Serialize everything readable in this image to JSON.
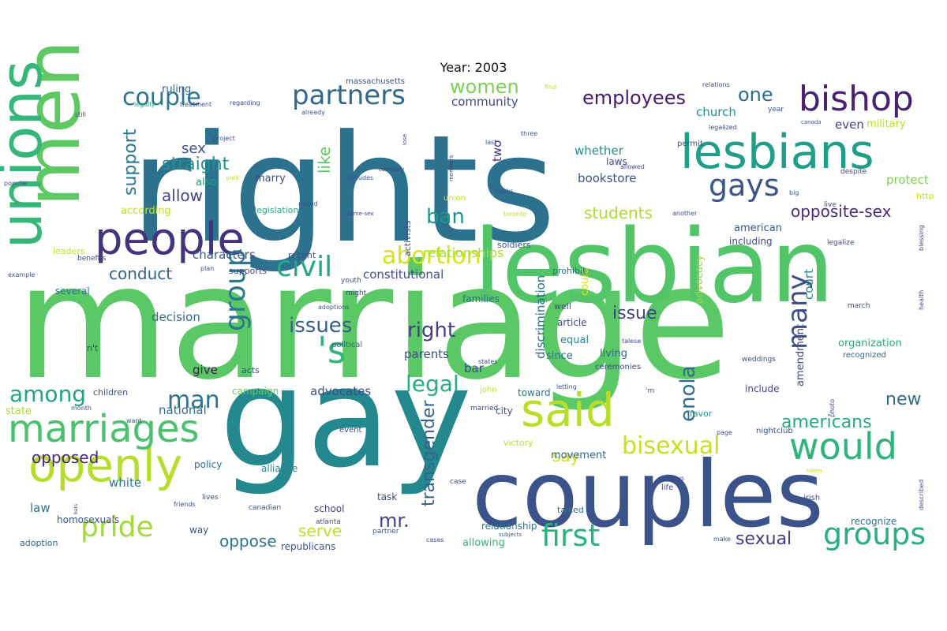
{
  "title": "Year: 2003",
  "words": [
    {
      "text": "marriage",
      "color": "#5ac864"
    },
    {
      "text": "rights",
      "color": "#2c718e"
    },
    {
      "text": "gay",
      "color": "#23898e"
    },
    {
      "text": "lesbian",
      "color": "#52c569"
    },
    {
      "text": "couples",
      "color": "#3b528b"
    },
    {
      "text": "men",
      "color": "#5ec962"
    },
    {
      "text": "unions",
      "color": "#35b779"
    },
    {
      "text": "people",
      "color": "#46337e"
    },
    {
      "text": "lesbians",
      "color": "#1f9e89"
    },
    {
      "text": "bishop",
      "color": "#482173"
    },
    {
      "text": "openly",
      "color": "#b5de2b"
    },
    {
      "text": "marriages",
      "color": "#4ac16d"
    },
    {
      "text": "said",
      "color": "#b8de29"
    },
    {
      "text": "would",
      "color": "#2fb47c"
    },
    {
      "text": "partners",
      "color": "#31688e"
    },
    {
      "text": "gays",
      "color": "#39558c"
    },
    {
      "text": "couple",
      "color": "#2a788e"
    },
    {
      "text": "civil",
      "color": "#22a884"
    },
    {
      "text": "abortion",
      "color": "#d8e219"
    },
    {
      "text": "pride",
      "color": "#a2da37"
    },
    {
      "text": "first",
      "color": "#2db27d"
    },
    {
      "text": "groups",
      "color": "#29af7f"
    },
    {
      "text": "group",
      "color": "#29798e"
    },
    {
      "text": "bisexual",
      "color": "#c8e020"
    },
    {
      "text": "'s",
      "color": "#31b57b"
    },
    {
      "text": "many",
      "color": "#3e4a89"
    },
    {
      "text": "right",
      "color": "#433e85"
    },
    {
      "text": "issues",
      "color": "#355f8d"
    },
    {
      "text": "legal",
      "color": "#26ad81"
    },
    {
      "text": "among",
      "color": "#20a486"
    },
    {
      "text": "man",
      "color": "#2c728e"
    },
    {
      "text": "women",
      "color": "#7ad151"
    },
    {
      "text": "employees",
      "color": "#481a6c"
    },
    {
      "text": "ban",
      "color": "#1f968b"
    },
    {
      "text": "one",
      "color": "#2e6d8e"
    },
    {
      "text": "enola",
      "color": "#2f6c8e"
    },
    {
      "text": "americans",
      "color": "#25ab82"
    },
    {
      "text": "transgender",
      "color": "#33638d"
    },
    {
      "text": "mr.",
      "color": "#3f4788"
    },
    {
      "text": "sexual",
      "color": "#433e85"
    },
    {
      "text": "support",
      "color": "#2a788e"
    },
    {
      "text": "straight",
      "color": "#21918c"
    },
    {
      "text": "sex",
      "color": "#3b528b"
    },
    {
      "text": "allow",
      "color": "#404688"
    },
    {
      "text": "conduct",
      "color": "#34618d"
    },
    {
      "text": "opposed",
      "color": "#482878"
    },
    {
      "text": "oppose",
      "color": "#2a768e"
    },
    {
      "text": "serve",
      "color": "#c0df25"
    },
    {
      "text": "students",
      "color": "#addc30"
    },
    {
      "text": "relationships",
      "color": "#a8db34"
    },
    {
      "text": "opposite-sex",
      "color": "#472d7b"
    },
    {
      "text": "new",
      "color": "#2e6f8e"
    },
    {
      "text": "say",
      "color": "#d0e11c"
    },
    {
      "text": "issue",
      "color": "#414487"
    },
    {
      "text": "like",
      "color": "#5ec962"
    },
    {
      "text": "even",
      "color": "#404588"
    },
    {
      "text": "church",
      "color": "#1f948c"
    },
    {
      "text": "court",
      "color": "#24868e"
    },
    {
      "text": "community",
      "color": "#3e4989"
    },
    {
      "text": "whether",
      "color": "#21918c"
    },
    {
      "text": "bookstore",
      "color": "#3a538b"
    },
    {
      "text": "constitutional",
      "color": "#3d4e8a"
    },
    {
      "text": "characters",
      "color": "#37598c"
    },
    {
      "text": "advocates",
      "color": "#3d4d8a"
    },
    {
      "text": "ruling",
      "color": "#355f8d"
    },
    {
      "text": "two",
      "color": "#472f7d"
    },
    {
      "text": "massachusetts",
      "color": "#3b528b"
    },
    {
      "text": "military",
      "color": "#bddf26"
    },
    {
      "text": "protect",
      "color": "#7fd34e"
    },
    {
      "text": "http",
      "color": "#cae11f"
    },
    {
      "text": "including",
      "color": "#3e4a89"
    },
    {
      "text": "american",
      "color": "#3b528b"
    },
    {
      "text": "advocacy",
      "color": "#98d83e"
    },
    {
      "text": "discrimination",
      "color": "#2e6e8e"
    },
    {
      "text": "could",
      "color": "#d5e21a"
    },
    {
      "text": "laws",
      "color": "#3e4c8a"
    },
    {
      "text": "marry",
      "color": "#3d4d8a"
    },
    {
      "text": "also",
      "color": "#1fa088"
    },
    {
      "text": "according",
      "color": "#c0df25"
    },
    {
      "text": "legislation",
      "color": "#22a884"
    },
    {
      "text": "recent",
      "color": "#3b528b"
    },
    {
      "text": "decision",
      "color": "#2d708e"
    },
    {
      "text": "national",
      "color": "#2e6e8e"
    },
    {
      "text": "law",
      "color": "#2c728e"
    },
    {
      "text": "white",
      "color": "#2a778e"
    },
    {
      "text": "children",
      "color": "#3c4f8a"
    },
    {
      "text": "parents",
      "color": "#3e4c8a"
    },
    {
      "text": "give",
      "color": "#471063"
    },
    {
      "text": "bar",
      "color": "#3f4788"
    },
    {
      "text": "equal",
      "color": "#26828e"
    },
    {
      "text": "since",
      "color": "#2c738e"
    },
    {
      "text": "living",
      "color": "#31688e"
    },
    {
      "text": "article",
      "color": "#3e4a89"
    },
    {
      "text": "amendment",
      "color": "#3e4989"
    },
    {
      "text": "organization",
      "color": "#25ab82"
    },
    {
      "text": "recognized",
      "color": "#32658e"
    },
    {
      "text": "include",
      "color": "#404588"
    },
    {
      "text": "campaign",
      "color": "#67cc5c"
    },
    {
      "text": "families",
      "color": "#2e6e8e"
    },
    {
      "text": "movement",
      "color": "#31688e"
    },
    {
      "text": "victory",
      "color": "#bddf26"
    },
    {
      "text": "favor",
      "color": "#1f9a8a"
    },
    {
      "text": "supports",
      "color": "#3e4989"
    },
    {
      "text": "several",
      "color": "#2e6f8e"
    },
    {
      "text": "state",
      "color": "#addc30"
    },
    {
      "text": "policy",
      "color": "#2e6d8e"
    },
    {
      "text": "alliance",
      "color": "#24878e"
    },
    {
      "text": "school",
      "color": "#3e4989"
    },
    {
      "text": "task",
      "color": "#3f4889"
    },
    {
      "text": "relationship",
      "color": "#2a768e"
    },
    {
      "text": "allowing",
      "color": "#34b679"
    },
    {
      "text": "republicans",
      "color": "#39568c"
    },
    {
      "text": "homosexuals",
      "color": "#3b528b"
    },
    {
      "text": "adoption",
      "color": "#33638d"
    },
    {
      "text": "way",
      "color": "#3c4f8a"
    },
    {
      "text": "recognize",
      "color": "#2d708e"
    },
    {
      "text": "toward",
      "color": "#2a768e"
    },
    {
      "text": "talked",
      "color": "#2d708e"
    },
    {
      "text": "prohibit",
      "color": "#2e6d8e"
    },
    {
      "text": "soldiers",
      "color": "#3d4e8a"
    },
    {
      "text": "union",
      "color": "#c2df23"
    },
    {
      "text": "activists",
      "color": "#3e4c8a"
    },
    {
      "text": "political",
      "color": "#3a548c"
    },
    {
      "text": "acts",
      "color": "#3b528b"
    },
    {
      "text": "leaders",
      "color": "#c8e020"
    },
    {
      "text": "benefits",
      "color": "#3e4c8a"
    },
    {
      "text": "example",
      "color": "#3b528b"
    },
    {
      "text": "n't",
      "color": "#3e4989"
    },
    {
      "text": "treatment",
      "color": "#3b528b"
    },
    {
      "text": "regarding",
      "color": "#3e4989"
    },
    {
      "text": "legally",
      "color": "#22a884"
    },
    {
      "text": "still",
      "color": "#3e4a89"
    },
    {
      "text": "project",
      "color": "#3b528b"
    },
    {
      "text": "york",
      "color": "#c8e020"
    },
    {
      "text": "popular",
      "color": "#3b528b"
    },
    {
      "text": "company",
      "color": "#3e4989"
    },
    {
      "text": "includes",
      "color": "#3b528b"
    },
    {
      "text": "allowed",
      "color": "#3e4a89"
    },
    {
      "text": "books",
      "color": "#3b528b"
    },
    {
      "text": "toronto",
      "color": "#b5de2b"
    },
    {
      "text": "same-sex",
      "color": "#3e4989"
    },
    {
      "text": "raised",
      "color": "#3b528b"
    },
    {
      "text": "members",
      "color": "#3e4989"
    },
    {
      "text": "three",
      "color": "#3b528b"
    },
    {
      "text": "lose",
      "color": "#3e4a89"
    },
    {
      "text": "last",
      "color": "#3b528b"
    },
    {
      "text": "already",
      "color": "#3b528b"
    },
    {
      "text": "find",
      "color": "#c8e020"
    },
    {
      "text": "relations",
      "color": "#3e4989"
    },
    {
      "text": "year",
      "color": "#3b528b"
    },
    {
      "text": "legalized",
      "color": "#3e4a89"
    },
    {
      "text": "canada",
      "color": "#3b528b"
    },
    {
      "text": "despite",
      "color": "#3e4989"
    },
    {
      "text": "big",
      "color": "#3b528b"
    },
    {
      "text": "live",
      "color": "#3e4a89"
    },
    {
      "text": "permit",
      "color": "#3b528b"
    },
    {
      "text": "another",
      "color": "#3e4989"
    },
    {
      "text": "blessing",
      "color": "#3b528b"
    },
    {
      "text": "legalize",
      "color": "#3e4a89"
    },
    {
      "text": "health",
      "color": "#3b528b"
    },
    {
      "text": "march",
      "color": "#3e4989"
    },
    {
      "text": "weddings",
      "color": "#3b528b"
    },
    {
      "text": "talese",
      "color": "#3e4a89"
    },
    {
      "text": "states",
      "color": "#3b528b"
    },
    {
      "text": "ceremonies",
      "color": "#3e4989"
    },
    {
      "text": "john",
      "color": "#c8e020"
    },
    {
      "text": "letting",
      "color": "#3b528b"
    },
    {
      "text": "married",
      "color": "#3e4989"
    },
    {
      "text": "'m",
      "color": "#3b528b"
    },
    {
      "text": "photo",
      "color": "#3e4a89"
    },
    {
      "text": "city",
      "color": "#3b528b"
    },
    {
      "text": "event",
      "color": "#3e4989"
    },
    {
      "text": "nightclub",
      "color": "#3b528b"
    },
    {
      "text": "page",
      "color": "#3e4a89"
    },
    {
      "text": "taken",
      "color": "#c8e020"
    },
    {
      "text": "described",
      "color": "#3b528b"
    },
    {
      "text": "guys",
      "color": "#3e4989"
    },
    {
      "text": "irish",
      "color": "#3b528b"
    },
    {
      "text": "life",
      "color": "#3e4a89"
    },
    {
      "text": "make",
      "color": "#3b528b"
    },
    {
      "text": "case",
      "color": "#3e4989"
    },
    {
      "text": "subjects",
      "color": "#3b528b"
    },
    {
      "text": "cases",
      "color": "#3e4a89"
    },
    {
      "text": "partner",
      "color": "#3b528b"
    },
    {
      "text": "atlanta",
      "color": "#3e4989"
    },
    {
      "text": "canadian",
      "color": "#3b528b"
    },
    {
      "text": "lives",
      "color": "#3e4a89"
    },
    {
      "text": "friends",
      "color": "#3b528b"
    },
    {
      "text": "bars",
      "color": "#3e4989"
    },
    {
      "text": "want",
      "color": "#3b528b"
    },
    {
      "text": "month",
      "color": "#3e4a89"
    },
    {
      "text": "youth",
      "color": "#3b528b"
    },
    {
      "text": "might",
      "color": "#3e4989"
    },
    {
      "text": "adoptions",
      "color": "#3b528b"
    },
    {
      "text": "well",
      "color": "#3e4a89"
    },
    {
      "text": "plan",
      "color": "#3b528b"
    }
  ]
}
